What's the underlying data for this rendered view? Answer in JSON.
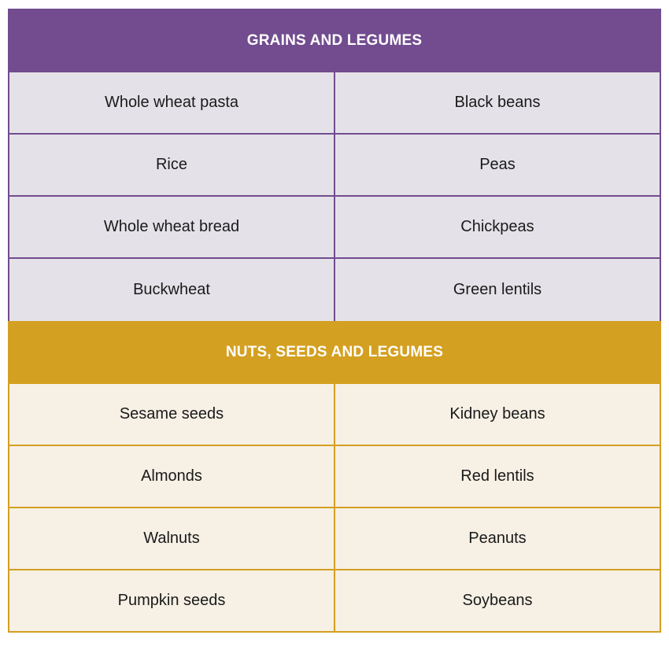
{
  "sections": [
    {
      "title": "GRAINS AND LEGUMES",
      "color": "#724c8f",
      "rows": [
        [
          "Whole wheat pasta",
          "Black beans"
        ],
        [
          "Rice",
          "Peas"
        ],
        [
          "Whole wheat bread",
          "Chickpeas"
        ],
        [
          "Buckwheat",
          "Green lentils"
        ]
      ]
    },
    {
      "title": "NUTS, SEEDS AND LEGUMES",
      "color": "#d4a021",
      "rows": [
        [
          "Sesame seeds",
          "Kidney beans"
        ],
        [
          "Almonds",
          "Red lentils"
        ],
        [
          "Walnuts",
          "Peanuts"
        ],
        [
          "Pumpkin seeds",
          "Soybeans"
        ]
      ]
    }
  ]
}
